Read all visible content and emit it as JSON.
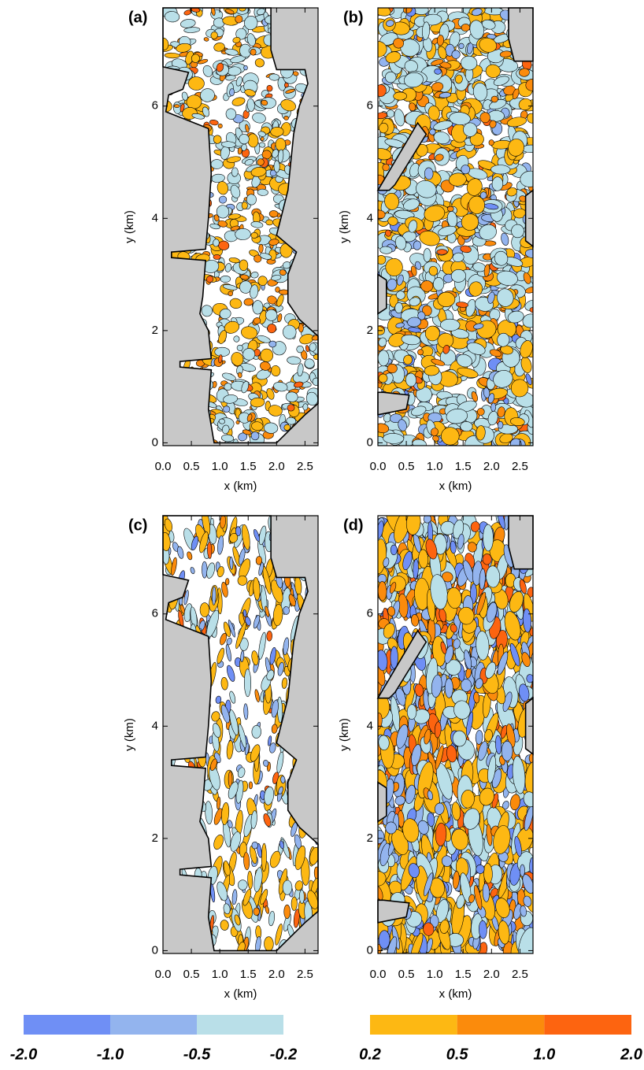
{
  "chart_data": [
    {
      "type": "contour",
      "label": "(a)",
      "xlabel": "x (km)",
      "ylabel": "y (km)",
      "xlim": [
        0,
        2.73
      ],
      "ylim": [
        -0.05,
        7.75
      ],
      "xticks": [
        {
          "value": 0,
          "label": "0.0"
        },
        {
          "value": 0.5,
          "label": "0.5"
        },
        {
          "value": 1,
          "label": "1.0"
        },
        {
          "value": 1.5,
          "label": "1.5"
        },
        {
          "value": 2,
          "label": "2.0"
        },
        {
          "value": 2.5,
          "label": "2.5"
        }
      ],
      "yticks": [
        0,
        2,
        4,
        6
      ]
    },
    {
      "type": "contour",
      "label": "(b)",
      "xlabel": "x (km)",
      "ylabel": "y (km)",
      "xlim": [
        0,
        2.73
      ],
      "ylim": [
        -0.05,
        7.75
      ],
      "xticks": [
        {
          "value": 0,
          "label": "0.0"
        },
        {
          "value": 0.5,
          "label": "0.5"
        },
        {
          "value": 1,
          "label": "1.0"
        },
        {
          "value": 1.5,
          "label": "1.5"
        },
        {
          "value": 2,
          "label": "2.0"
        },
        {
          "value": 2.5,
          "label": "2.5"
        }
      ],
      "yticks": [
        0,
        2,
        4,
        6
      ]
    },
    {
      "type": "contour",
      "label": "(c)",
      "xlabel": "x (km)",
      "ylabel": "y (km)",
      "xlim": [
        0,
        2.73
      ],
      "ylim": [
        -0.05,
        7.75
      ],
      "xticks": [
        {
          "value": 0,
          "label": "0.0"
        },
        {
          "value": 0.5,
          "label": "0.5"
        },
        {
          "value": 1,
          "label": "1.0"
        },
        {
          "value": 1.5,
          "label": "1.5"
        },
        {
          "value": 2,
          "label": "2.0"
        },
        {
          "value": 2.5,
          "label": "2.5"
        }
      ],
      "yticks": [
        0,
        2,
        4,
        6
      ]
    },
    {
      "type": "contour",
      "label": "(d)",
      "xlabel": "x (km)",
      "ylabel": "y (km)",
      "xlim": [
        0,
        2.73
      ],
      "ylim": [
        -0.05,
        7.75
      ],
      "xticks": [
        {
          "value": 0,
          "label": "0.0"
        },
        {
          "value": 0.5,
          "label": "0.5"
        },
        {
          "value": 1,
          "label": "1.0"
        },
        {
          "value": 1.5,
          "label": "1.5"
        },
        {
          "value": 2,
          "label": "2.0"
        },
        {
          "value": 2.5,
          "label": "2.5"
        }
      ],
      "yticks": [
        0,
        2,
        4,
        6
      ]
    }
  ],
  "colorbar": {
    "negative": {
      "levels": [
        {
          "value": -2,
          "label": "-2.0"
        },
        {
          "value": -1,
          "label": "-1.0"
        },
        {
          "value": -0.5,
          "label": "-0.5"
        },
        {
          "value": -0.2,
          "label": "-0.2"
        }
      ],
      "colors": [
        "#6f8ff5",
        "#93b4ee",
        "#b9dfe8"
      ]
    },
    "positive": {
      "levels": [
        {
          "value": 0.2,
          "label": "0.2"
        },
        {
          "value": 0.5,
          "label": "0.5"
        },
        {
          "value": 1,
          "label": "1.0"
        },
        {
          "value": 2,
          "label": "2.0"
        }
      ],
      "colors": [
        "#fdb813",
        "#fb8b0c",
        "#fd6410"
      ]
    }
  }
}
